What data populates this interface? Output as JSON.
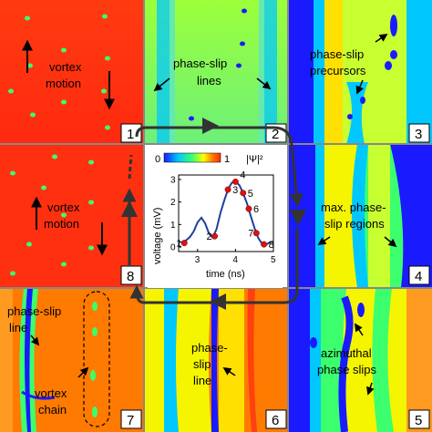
{
  "panels": [
    {
      "number": "1",
      "annotations": [
        "vortex",
        "motion"
      ]
    },
    {
      "number": "2",
      "annotations": [
        "phase-slip",
        "lines"
      ]
    },
    {
      "number": "3",
      "annotations": [
        "phase-slip",
        "precursors"
      ]
    },
    {
      "number": "4",
      "annotations": [
        "max. phase-",
        "slip regions"
      ]
    },
    {
      "number": "5",
      "annotations": [
        "azimuthal",
        "phase slips"
      ]
    },
    {
      "number": "6",
      "annotations": [
        "phase-",
        "slip",
        "line"
      ]
    },
    {
      "number": "7",
      "annotations": [
        "phase-slip",
        "line",
        "vortex",
        "chain"
      ]
    },
    {
      "number": "8",
      "annotations": [
        "vortex",
        "motion"
      ]
    }
  ],
  "colorbar": {
    "min": "0",
    "max": "1",
    "label": "|Ψ|²",
    "colors": [
      "#1a1aff",
      "#00c8ff",
      "#3cff6e",
      "#ffff00",
      "#ff8000",
      "#ff2a10"
    ]
  },
  "chart_data": {
    "type": "line",
    "xlabel": "time (ns)",
    "ylabel": "voltage (mV)",
    "xlim": [
      2.5,
      5
    ],
    "ylim": [
      -0.2,
      3.2
    ],
    "xticks": [
      "3",
      "4",
      "5"
    ],
    "yticks": [
      "0",
      "1",
      "2",
      "3"
    ],
    "line_color": "#1f3f9f",
    "curve": [
      [
        2.5,
        0.25
      ],
      [
        2.6,
        0.2
      ],
      [
        2.7,
        0.3
      ],
      [
        2.8,
        0.45
      ],
      [
        2.9,
        0.7
      ],
      [
        3.0,
        1.1
      ],
      [
        3.1,
        1.3
      ],
      [
        3.2,
        1.05
      ],
      [
        3.3,
        0.6
      ],
      [
        3.4,
        0.42
      ],
      [
        3.5,
        0.8
      ],
      [
        3.6,
        1.5
      ],
      [
        3.7,
        2.05
      ],
      [
        3.8,
        2.55
      ],
      [
        3.9,
        2.85
      ],
      [
        4.0,
        2.9
      ],
      [
        4.1,
        2.75
      ],
      [
        4.2,
        2.4
      ],
      [
        4.3,
        1.95
      ],
      [
        4.4,
        1.4
      ],
      [
        4.5,
        0.85
      ],
      [
        4.6,
        0.4
      ],
      [
        4.7,
        0.15
      ],
      [
        4.8,
        0.1
      ],
      [
        4.9,
        0.2
      ],
      [
        5.0,
        0.25
      ]
    ],
    "points": [
      {
        "label": "1",
        "x": 2.65,
        "y": 0.18
      },
      {
        "label": "2",
        "x": 3.45,
        "y": 0.48
      },
      {
        "label": "3",
        "x": 3.8,
        "y": 2.55
      },
      {
        "label": "4",
        "x": 4.0,
        "y": 2.9
      },
      {
        "label": "5",
        "x": 4.2,
        "y": 2.4
      },
      {
        "label": "6",
        "x": 4.35,
        "y": 1.7
      },
      {
        "label": "7",
        "x": 4.55,
        "y": 0.62
      },
      {
        "label": "8",
        "x": 4.75,
        "y": 0.12
      }
    ]
  },
  "colors": {
    "red": "#ff2a10",
    "orange": "#ff7a00",
    "yellow": "#f5f500",
    "green": "#3cff6e",
    "cyan": "#00c8ff",
    "blue": "#1a1aff",
    "arrow": "#333333"
  }
}
